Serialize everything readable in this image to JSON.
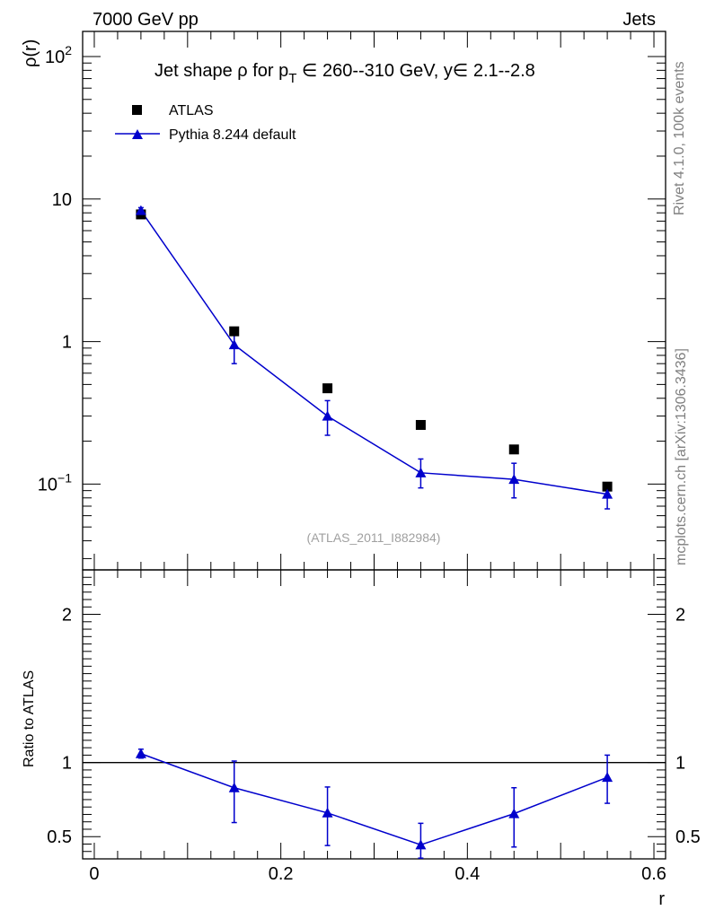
{
  "header": {
    "left": "7000 GeV pp",
    "right": "Jets"
  },
  "side_labels": {
    "rivet": "Rivet 4.1.0,  100k events",
    "source": "mcplots.cern.ch [arXiv:1306.3436]"
  },
  "chart_data": [
    {
      "type": "scatter",
      "panel": "main",
      "title_prefix": "Jet shape ",
      "title_rho": "ρ",
      "title_mid": " for p",
      "title_sub": "T",
      "title_suffix": " ∈ 260--310 GeV, y∈ 2.1--2.8",
      "ylabel": "ρ(r)",
      "yscale": "log",
      "ylim": [
        0.025,
        150
      ],
      "xlim": [
        -0.0125,
        0.6125
      ],
      "x": [
        0.05,
        0.15,
        0.25,
        0.35,
        0.45,
        0.55
      ],
      "y_ticks": [
        {
          "value": 100,
          "base": "10",
          "exp": "2"
        },
        {
          "value": 10,
          "base": "10",
          "exp": ""
        },
        {
          "value": 1,
          "base": "1",
          "exp": ""
        },
        {
          "value": 0.1,
          "base": "10",
          "exp": "−1"
        }
      ],
      "watermark": "(ATLAS_2011_I882984)",
      "series": [
        {
          "name": "ATLAS",
          "marker": "square",
          "color": "#000000",
          "values": [
            7.8,
            1.18,
            0.47,
            0.26,
            0.175,
            0.096
          ]
        },
        {
          "name": "Pythia 8.244 default",
          "marker": "triangle",
          "color": "#0000cc",
          "values": [
            8.3,
            0.95,
            0.3,
            0.12,
            0.108,
            0.085
          ],
          "err_low": [
            7.9,
            0.7,
            0.22,
            0.094,
            0.08,
            0.067
          ],
          "err_high": [
            8.7,
            1.2,
            0.385,
            0.15,
            0.14,
            0.1
          ]
        }
      ]
    },
    {
      "type": "line",
      "panel": "ratio",
      "ylabel": "Ratio to ATLAS",
      "xlabel": "r",
      "ylim": [
        0.35,
        2.3
      ],
      "xlim": [
        -0.0125,
        0.6125
      ],
      "reference": 1.0,
      "x": [
        0.05,
        0.15,
        0.25,
        0.35,
        0.45,
        0.55
      ],
      "x_ticks": [
        {
          "value": 0,
          "label": "0"
        },
        {
          "value": 0.2,
          "label": "0.2"
        },
        {
          "value": 0.4,
          "label": "0.4"
        },
        {
          "value": 0.6,
          "label": "0.6"
        }
      ],
      "y_ticks": [
        {
          "value": 0.5,
          "label": "0.5"
        },
        {
          "value": 1,
          "label": "1"
        },
        {
          "value": 2,
          "label": "2"
        }
      ],
      "series": [
        {
          "name": "Pythia 8.244 default",
          "color": "#0000cc",
          "values": [
            1.06,
            0.83,
            0.66,
            0.445,
            0.655,
            0.9
          ],
          "err_low": [
            1.03,
            0.595,
            0.44,
            0.355,
            0.43,
            0.725
          ],
          "err_high": [
            1.09,
            1.01,
            0.835,
            0.59,
            0.83,
            1.05
          ]
        }
      ]
    }
  ]
}
